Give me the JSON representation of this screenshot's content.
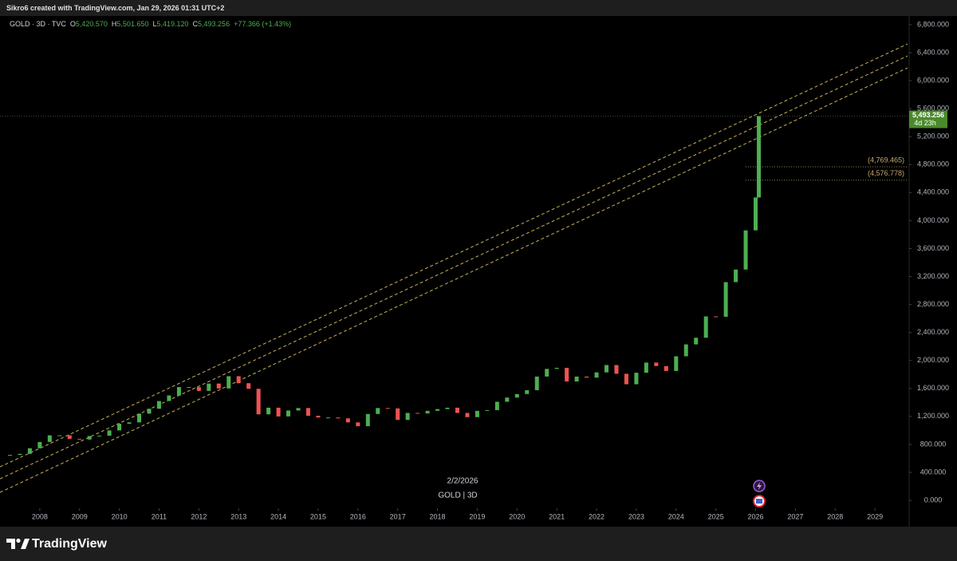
{
  "header": {
    "credit": "Sikro6 created with TradingView.com, Jan 29, 2026 01:31 UTC+2",
    "symbol": "GOLD · 3D · TVC",
    "ohlc": [
      {
        "key": "O",
        "value": "5,420.570"
      },
      {
        "key": "H",
        "value": "5,501.650"
      },
      {
        "key": "L",
        "value": "5,419.120"
      },
      {
        "key": "C",
        "value": "5,493.256"
      }
    ],
    "change": "+77.366 (+1.43%)"
  },
  "chart_data": {
    "type": "candlestick",
    "x": [
      2007.25,
      2007.5,
      2007.75,
      2008,
      2008.25,
      2008.5,
      2008.75,
      2009,
      2009.25,
      2009.5,
      2009.75,
      2010,
      2010.25,
      2010.5,
      2010.75,
      2011,
      2011.25,
      2011.5,
      2011.75,
      2012,
      2012.25,
      2012.5,
      2012.75,
      2013,
      2013.25,
      2013.5,
      2013.75,
      2014,
      2014.25,
      2014.5,
      2014.75,
      2015,
      2015.25,
      2015.5,
      2015.75,
      2016,
      2016.25,
      2016.5,
      2016.75,
      2017,
      2017.25,
      2017.5,
      2017.75,
      2018,
      2018.25,
      2018.5,
      2018.75,
      2019,
      2019.25,
      2019.5,
      2019.75,
      2020,
      2020.25,
      2020.5,
      2020.75,
      2021,
      2021.25,
      2021.5,
      2021.75,
      2022,
      2022.25,
      2022.5,
      2022.75,
      2023,
      2023.25,
      2023.5,
      2023.75,
      2024,
      2024.25,
      2024.5,
      2024.75,
      2025,
      2025.25,
      2025.5,
      2025.75,
      2026,
      2026.08
    ],
    "open": [
      640,
      650,
      665,
      745,
      835,
      930,
      930,
      880,
      870,
      920,
      925,
      1000,
      1095,
      1115,
      1240,
      1310,
      1420,
      1500,
      1620,
      1620,
      1565,
      1670,
      1600,
      1775,
      1675,
      1595,
      1230,
      1325,
      1200,
      1285,
      1320,
      1210,
      1185,
      1185,
      1172,
      1115,
      1060,
      1235,
      1320,
      1315,
      1150,
      1250,
      1242,
      1280,
      1305,
      1325,
      1250,
      1190,
      1280,
      1290,
      1410,
      1470,
      1520,
      1575,
      1770,
      1880,
      1895,
      1700,
      1770,
      1755,
      1830,
      1935,
      1810,
      1660,
      1825,
      1970,
      1920,
      1850,
      2060,
      2230,
      2325,
      2630,
      2625,
      3120,
      3300,
      3860,
      4330
    ],
    "close": [
      650,
      665,
      745,
      835,
      930,
      930,
      880,
      870,
      920,
      925,
      1000,
      1095,
      1115,
      1240,
      1310,
      1420,
      1500,
      1620,
      1620,
      1565,
      1670,
      1600,
      1775,
      1675,
      1595,
      1230,
      1325,
      1200,
      1285,
      1320,
      1210,
      1185,
      1185,
      1172,
      1115,
      1060,
      1235,
      1320,
      1315,
      1150,
      1250,
      1242,
      1280,
      1305,
      1325,
      1250,
      1190,
      1280,
      1290,
      1410,
      1470,
      1520,
      1575,
      1770,
      1880,
      1895,
      1700,
      1770,
      1755,
      1830,
      1935,
      1810,
      1660,
      1825,
      1970,
      1920,
      1850,
      2060,
      2230,
      2325,
      2630,
      2625,
      3120,
      3300,
      3860,
      4330,
      5493.256
    ],
    "up_color": "#4caf50",
    "down_color": "#ef5350",
    "xlim": [
      2007.0,
      2029.86
    ],
    "ylim": [
      -262,
      6891
    ],
    "xticks": [
      2008,
      2009,
      2010,
      2011,
      2012,
      2013,
      2014,
      2015,
      2016,
      2017,
      2018,
      2019,
      2020,
      2021,
      2022,
      2023,
      2024,
      2025,
      2026,
      2027,
      2028,
      2029
    ],
    "yticks": [
      {
        "value": 0,
        "label": "0.000"
      },
      {
        "value": 400,
        "label": "400.000"
      },
      {
        "value": 800,
        "label": "800.000"
      },
      {
        "value": 1200,
        "label": "1,200.000"
      },
      {
        "value": 1600,
        "label": "1,600.000"
      },
      {
        "value": 2000,
        "label": "2,000.000"
      },
      {
        "value": 2400,
        "label": "2,400.000"
      },
      {
        "value": 2800,
        "label": "2,800.000"
      },
      {
        "value": 3200,
        "label": "3,200.000"
      },
      {
        "value": 3600,
        "label": "3,600.000"
      },
      {
        "value": 4000,
        "label": "4,000.000"
      },
      {
        "value": 4400,
        "label": "4,400.000"
      },
      {
        "value": 4800,
        "label": "4,800.000"
      },
      {
        "value": 5200,
        "label": "5,200.000"
      },
      {
        "value": 5600,
        "label": "5,600.000"
      },
      {
        "value": 6000,
        "label": "6,000.000"
      },
      {
        "value": 6400,
        "label": "6,400.000"
      },
      {
        "value": 6800,
        "label": "6,800.000"
      }
    ],
    "grid": false,
    "channel": {
      "color": "#c8b25a",
      "lines": [
        {
          "x": [
            2007.0,
            2029.82
          ],
          "values": [
            479,
            6525
          ]
        },
        {
          "x": [
            2007.0,
            2029.82
          ],
          "values": [
            308,
            6354
          ]
        },
        {
          "x": [
            2007.0,
            2029.82
          ],
          "values": [
            114,
            6183
          ]
        }
      ]
    },
    "levels": [
      {
        "value": 4769.465,
        "label": "(4,769.465)"
      },
      {
        "value": 4576.778,
        "label": "(4,576.778)"
      }
    ],
    "level_color": "#c8a96e",
    "last_price": {
      "value": 5493.256,
      "label": "5,493.256",
      "countdown": "4d 23h",
      "color": "#4a8a2a"
    }
  },
  "footer": {
    "date": "2/2/2026",
    "series": "GOLD | 3D",
    "brand": "TradingView"
  }
}
